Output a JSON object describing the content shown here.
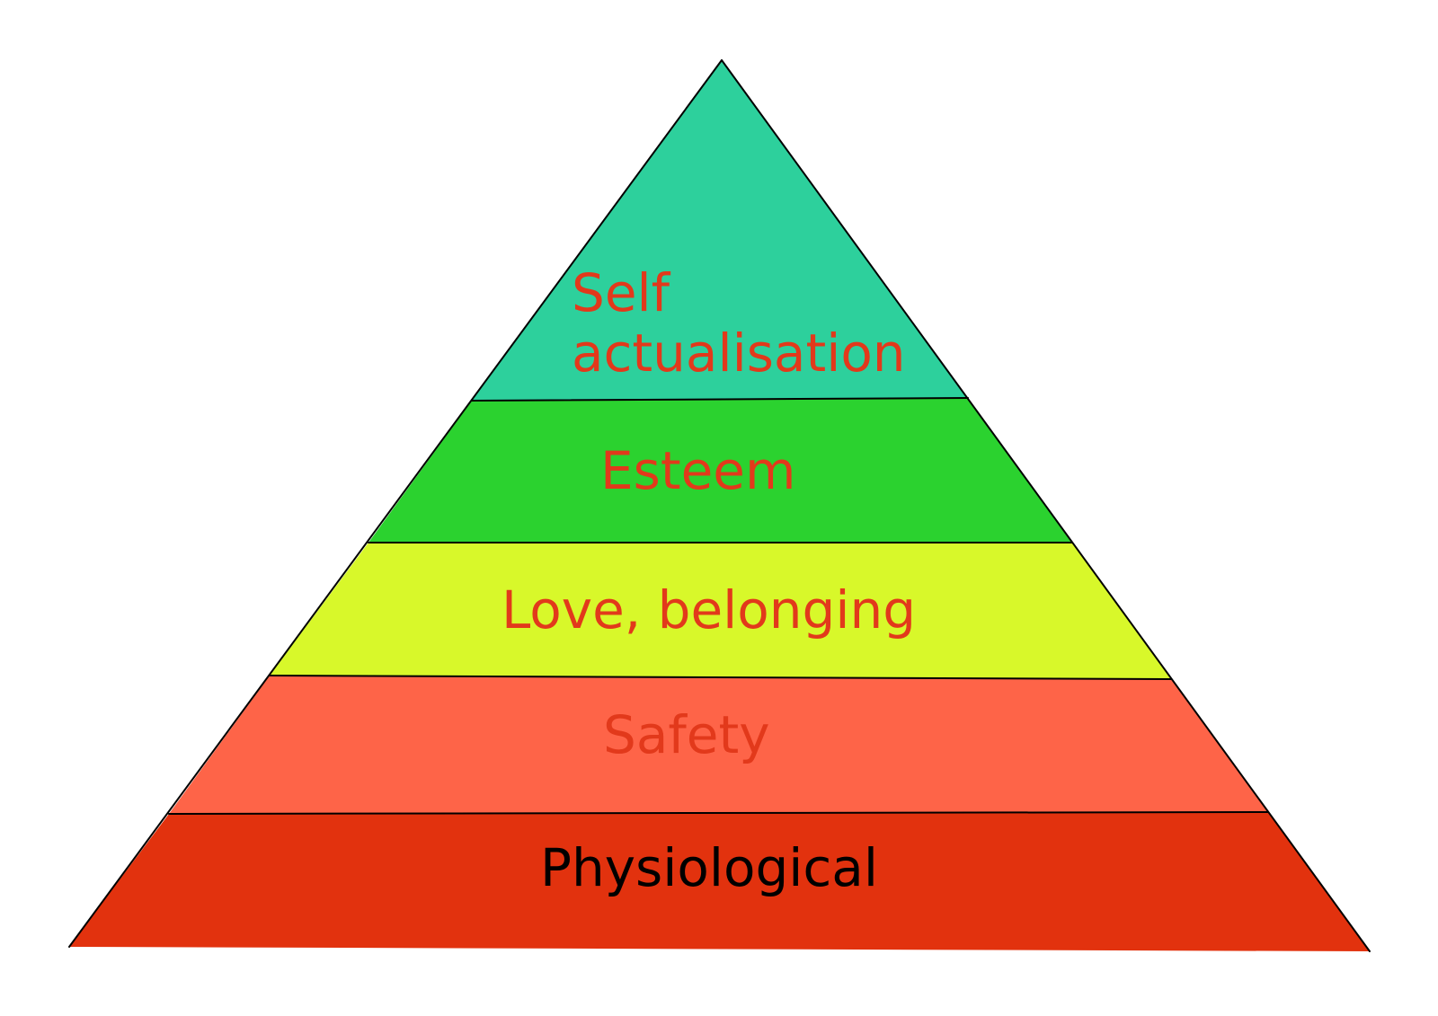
{
  "pyramid": {
    "tiers": [
      {
        "lines": [
          "Self",
          "actualisation"
        ],
        "fill": "#2dd09c",
        "text_color": "#e2391b"
      },
      {
        "lines": [
          "Esteem"
        ],
        "fill": "#2bd22f",
        "text_color": "#e2391b"
      },
      {
        "lines": [
          "Love, belonging"
        ],
        "fill": "#d8f82a",
        "text_color": "#e2391b"
      },
      {
        "lines": [
          "Safety"
        ],
        "fill": "#fe6448",
        "text_color": "#e2391b"
      },
      {
        "lines": [
          "Physiological"
        ],
        "fill": "#e2320e",
        "text_color": "#000000"
      }
    ],
    "outline_color": "#000000"
  }
}
